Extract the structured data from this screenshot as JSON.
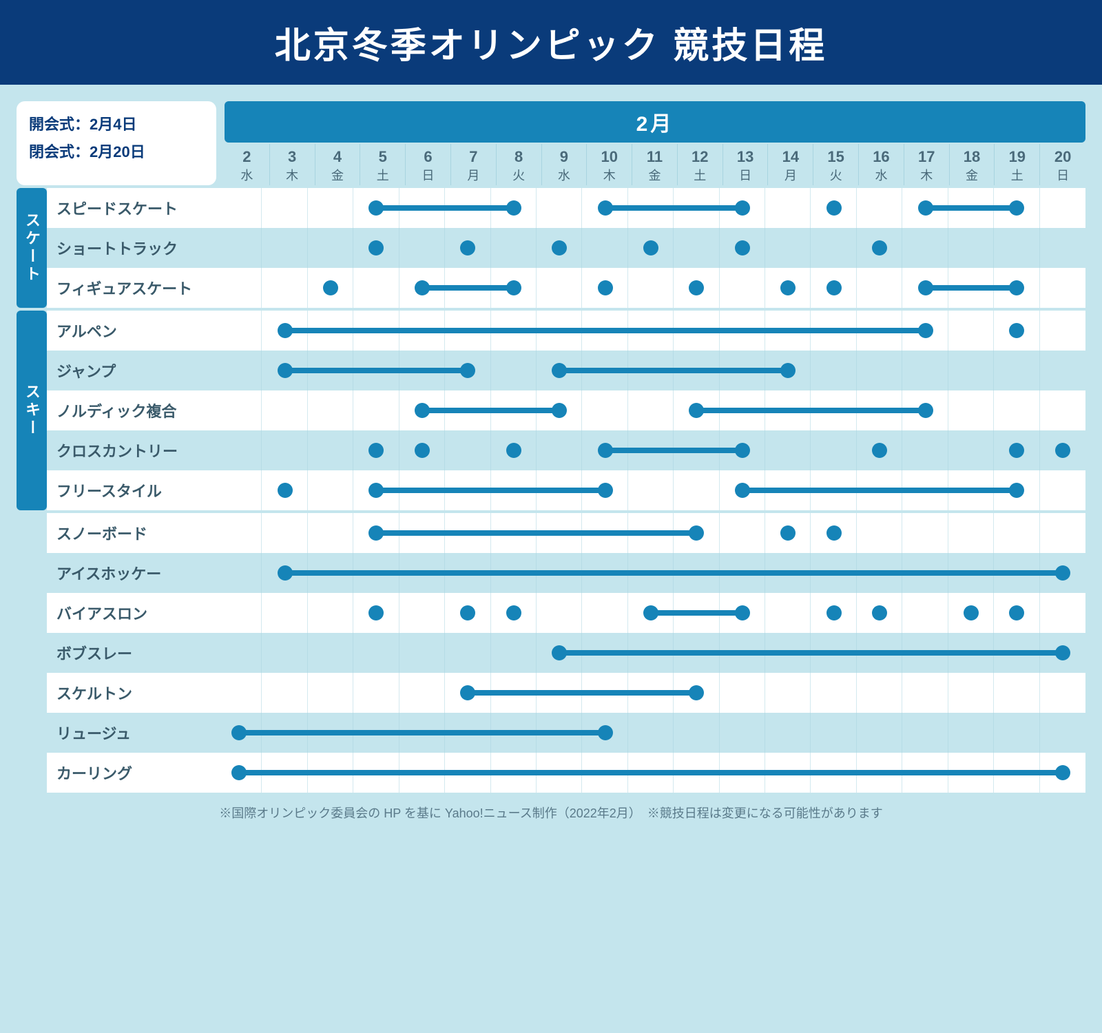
{
  "title": "北京冬季オリンピック 競技日程",
  "ceremony": {
    "open": "開会式：2月4日",
    "close": "閉会式：2月20日"
  },
  "month_label": "2月",
  "colors": {
    "title_bg": "#0a3b7a",
    "accent": "#1684b8",
    "page_bg": "#c4e5ed",
    "row_alt": "#ffffff",
    "text_muted": "#4a6a7a"
  },
  "days": [
    {
      "num": "2",
      "wd": "水"
    },
    {
      "num": "3",
      "wd": "木"
    },
    {
      "num": "4",
      "wd": "金"
    },
    {
      "num": "5",
      "wd": "土"
    },
    {
      "num": "6",
      "wd": "日"
    },
    {
      "num": "7",
      "wd": "月"
    },
    {
      "num": "8",
      "wd": "火"
    },
    {
      "num": "9",
      "wd": "水"
    },
    {
      "num": "10",
      "wd": "木"
    },
    {
      "num": "11",
      "wd": "金"
    },
    {
      "num": "12",
      "wd": "土"
    },
    {
      "num": "13",
      "wd": "日"
    },
    {
      "num": "14",
      "wd": "月"
    },
    {
      "num": "15",
      "wd": "火"
    },
    {
      "num": "16",
      "wd": "水"
    },
    {
      "num": "17",
      "wd": "木"
    },
    {
      "num": "18",
      "wd": "金"
    },
    {
      "num": "19",
      "wd": "土"
    },
    {
      "num": "20",
      "wd": "日"
    }
  ],
  "day_start": 2,
  "day_count": 19,
  "dot_radius": 11,
  "line_height": 8,
  "groups": [
    {
      "label": "スケート",
      "rows": [
        {
          "name": "スピードスケート",
          "segments": [
            [
              5,
              8
            ],
            [
              10,
              13
            ],
            [
              17,
              19
            ]
          ],
          "dots": [
            15
          ]
        },
        {
          "name": "ショートトラック",
          "segments": [],
          "dots": [
            5,
            7,
            9,
            11,
            13,
            16
          ]
        },
        {
          "name": "フィギュアスケート",
          "segments": [
            [
              6,
              8
            ],
            [
              17,
              19
            ]
          ],
          "dots": [
            4,
            10,
            12,
            14,
            15
          ]
        }
      ]
    },
    {
      "label": "スキー",
      "rows": [
        {
          "name": "アルペン",
          "segments": [
            [
              3,
              17
            ]
          ],
          "dots": [
            19
          ]
        },
        {
          "name": "ジャンプ",
          "segments": [
            [
              3,
              7
            ],
            [
              9,
              14
            ]
          ],
          "dots": []
        },
        {
          "name": "ノルディック複合",
          "segments": [
            [
              6,
              9
            ],
            [
              12,
              17
            ]
          ],
          "dots": []
        },
        {
          "name": "クロスカントリー",
          "segments": [
            [
              10,
              13
            ]
          ],
          "dots": [
            5,
            6,
            8,
            16,
            19,
            20
          ]
        },
        {
          "name": "フリースタイル",
          "segments": [
            [
              5,
              10
            ],
            [
              13,
              19
            ]
          ],
          "dots": [
            3
          ]
        }
      ]
    },
    {
      "label": "",
      "rows": [
        {
          "name": "スノーボード",
          "segments": [
            [
              5,
              12
            ]
          ],
          "dots": [
            14,
            15
          ]
        },
        {
          "name": "アイスホッケー",
          "segments": [
            [
              3,
              20
            ]
          ],
          "dots": []
        },
        {
          "name": "バイアスロン",
          "segments": [
            [
              11,
              13
            ]
          ],
          "dots": [
            5,
            7,
            8,
            15,
            16,
            18,
            19
          ]
        },
        {
          "name": "ボブスレー",
          "segments": [
            [
              9,
              20
            ]
          ],
          "dots": []
        },
        {
          "name": "スケルトン",
          "segments": [
            [
              7,
              12
            ]
          ],
          "dots": []
        },
        {
          "name": "リュージュ",
          "segments": [
            [
              2,
              10
            ]
          ],
          "dots": []
        },
        {
          "name": "カーリング",
          "segments": [
            [
              2,
              20
            ]
          ],
          "dots": []
        }
      ]
    }
  ],
  "footnote": "※国際オリンピック委員会の HP を基に Yahoo!ニュース制作（2022年2月）　※競技日程は変更になる可能性があります"
}
